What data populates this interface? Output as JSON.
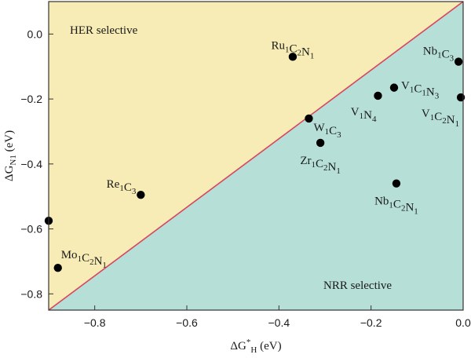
{
  "chart_data": {
    "type": "scatter",
    "xlabel": {
      "base": "ΔG",
      "sup": "*",
      "sub": "H",
      "unit": " (eV)"
    },
    "ylabel": {
      "base": "ΔG",
      "sub": "N1",
      "unit": " (eV)"
    },
    "xlim": [
      -0.9,
      0.0
    ],
    "ylim": [
      -0.85,
      0.1
    ],
    "xticks": [
      -0.8,
      -0.6,
      -0.4,
      -0.2,
      0.0
    ],
    "xtick_labels": [
      "−0.8",
      "−0.6",
      "−0.4",
      "−0.2",
      "0.0"
    ],
    "yticks": [
      -0.8,
      -0.6,
      -0.4,
      -0.2,
      0.0
    ],
    "ytick_labels": [
      "−0.8",
      "−0.6",
      "−0.4",
      "−0.2",
      "0.0"
    ],
    "grid": false,
    "diagonal": {
      "from": [
        -0.9,
        -0.85
      ],
      "to": [
        0.0,
        0.1
      ],
      "color": "#d9455f"
    },
    "regions": [
      {
        "label": "HER selective",
        "color": "#f7ecb5",
        "side": "upper-left"
      },
      {
        "label": "NRR selective",
        "color": "#b6e0d7",
        "side": "lower-right"
      }
    ],
    "points": [
      {
        "label": [
          [
            "Ru",
            "1"
          ],
          [
            "C",
            "2"
          ],
          [
            "N",
            "1"
          ]
        ],
        "x": -0.37,
        "y": -0.07,
        "anchor": "middle",
        "pos": "above"
      },
      {
        "label": [
          [
            "Nb",
            "1"
          ],
          [
            "C",
            "3"
          ]
        ],
        "x": -0.01,
        "y": -0.085,
        "anchor": "end",
        "pos": "above-left"
      },
      {
        "label": [
          [
            "V",
            "1"
          ],
          [
            "C",
            "1"
          ],
          [
            "N",
            "3"
          ]
        ],
        "x": -0.15,
        "y": -0.165,
        "anchor": "start",
        "pos": "right"
      },
      {
        "label": [
          [
            "V",
            "1"
          ],
          [
            "N",
            "4"
          ]
        ],
        "x": -0.185,
        "y": -0.19,
        "anchor": "end",
        "pos": "below-left"
      },
      {
        "label": [
          [
            "V",
            "1"
          ],
          [
            "C",
            "2"
          ],
          [
            "N",
            "1"
          ]
        ],
        "x": -0.005,
        "y": -0.195,
        "anchor": "end",
        "pos": "below-left"
      },
      {
        "label": [
          [
            "W",
            "1"
          ],
          [
            "C",
            "3"
          ]
        ],
        "x": -0.335,
        "y": -0.26,
        "anchor": "start",
        "pos": "below-right"
      },
      {
        "label": [
          [
            "Zr",
            "1"
          ],
          [
            "C",
            "2"
          ],
          [
            "N",
            "1"
          ]
        ],
        "x": -0.31,
        "y": -0.335,
        "anchor": "middle",
        "pos": "below"
      },
      {
        "label": [
          [
            "Re",
            "1"
          ],
          [
            "C",
            "3"
          ]
        ],
        "x": -0.7,
        "y": -0.495,
        "anchor": "end",
        "pos": "above-left"
      },
      {
        "label": [
          [
            "Nb",
            "1"
          ],
          [
            "C",
            "2"
          ],
          [
            "N",
            "1"
          ]
        ],
        "x": -0.145,
        "y": -0.46,
        "anchor": "middle",
        "pos": "below"
      },
      {
        "label": [
          [
            "Mo",
            "1"
          ],
          [
            "C",
            "2"
          ],
          [
            "N",
            "1"
          ]
        ],
        "x": -0.88,
        "y": -0.72,
        "anchor": "start",
        "pos": "above"
      },
      {
        "label": [],
        "x": -0.9,
        "y": -0.575,
        "anchor": "start",
        "pos": "none"
      }
    ]
  }
}
